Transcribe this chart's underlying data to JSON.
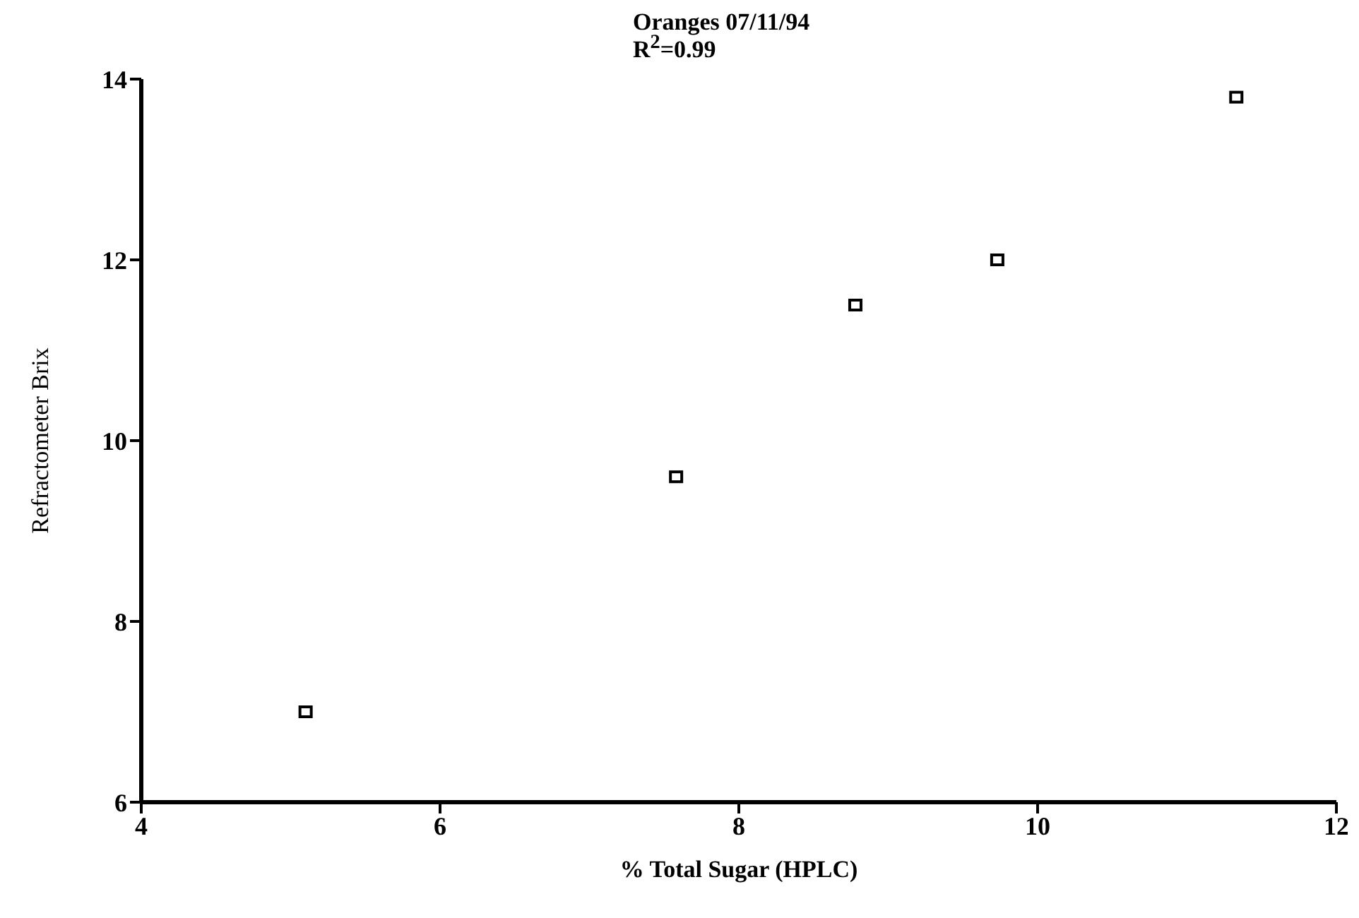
{
  "chart_data": {
    "type": "scatter",
    "title": "Oranges 07/11/94",
    "subtitle": "R$^{2}$=0.99",
    "xlabel": "% Total Sugar (HPLC)",
    "ylabel": "Refractometer Brix",
    "x": [
      5.1,
      7.58,
      8.78,
      9.73,
      11.33
    ],
    "series": [
      {
        "color": "#000000",
        "values": [
          7.0,
          9.6,
          11.5,
          12.0,
          13.8
        ]
      }
    ],
    "xlim": [
      4,
      12
    ],
    "xticks": [
      4,
      6,
      8,
      10,
      12
    ],
    "ylim": [
      6,
      14
    ],
    "yticks": [
      6,
      8,
      10,
      12,
      14
    ],
    "grid": false,
    "legend": false,
    "marker": "square"
  }
}
